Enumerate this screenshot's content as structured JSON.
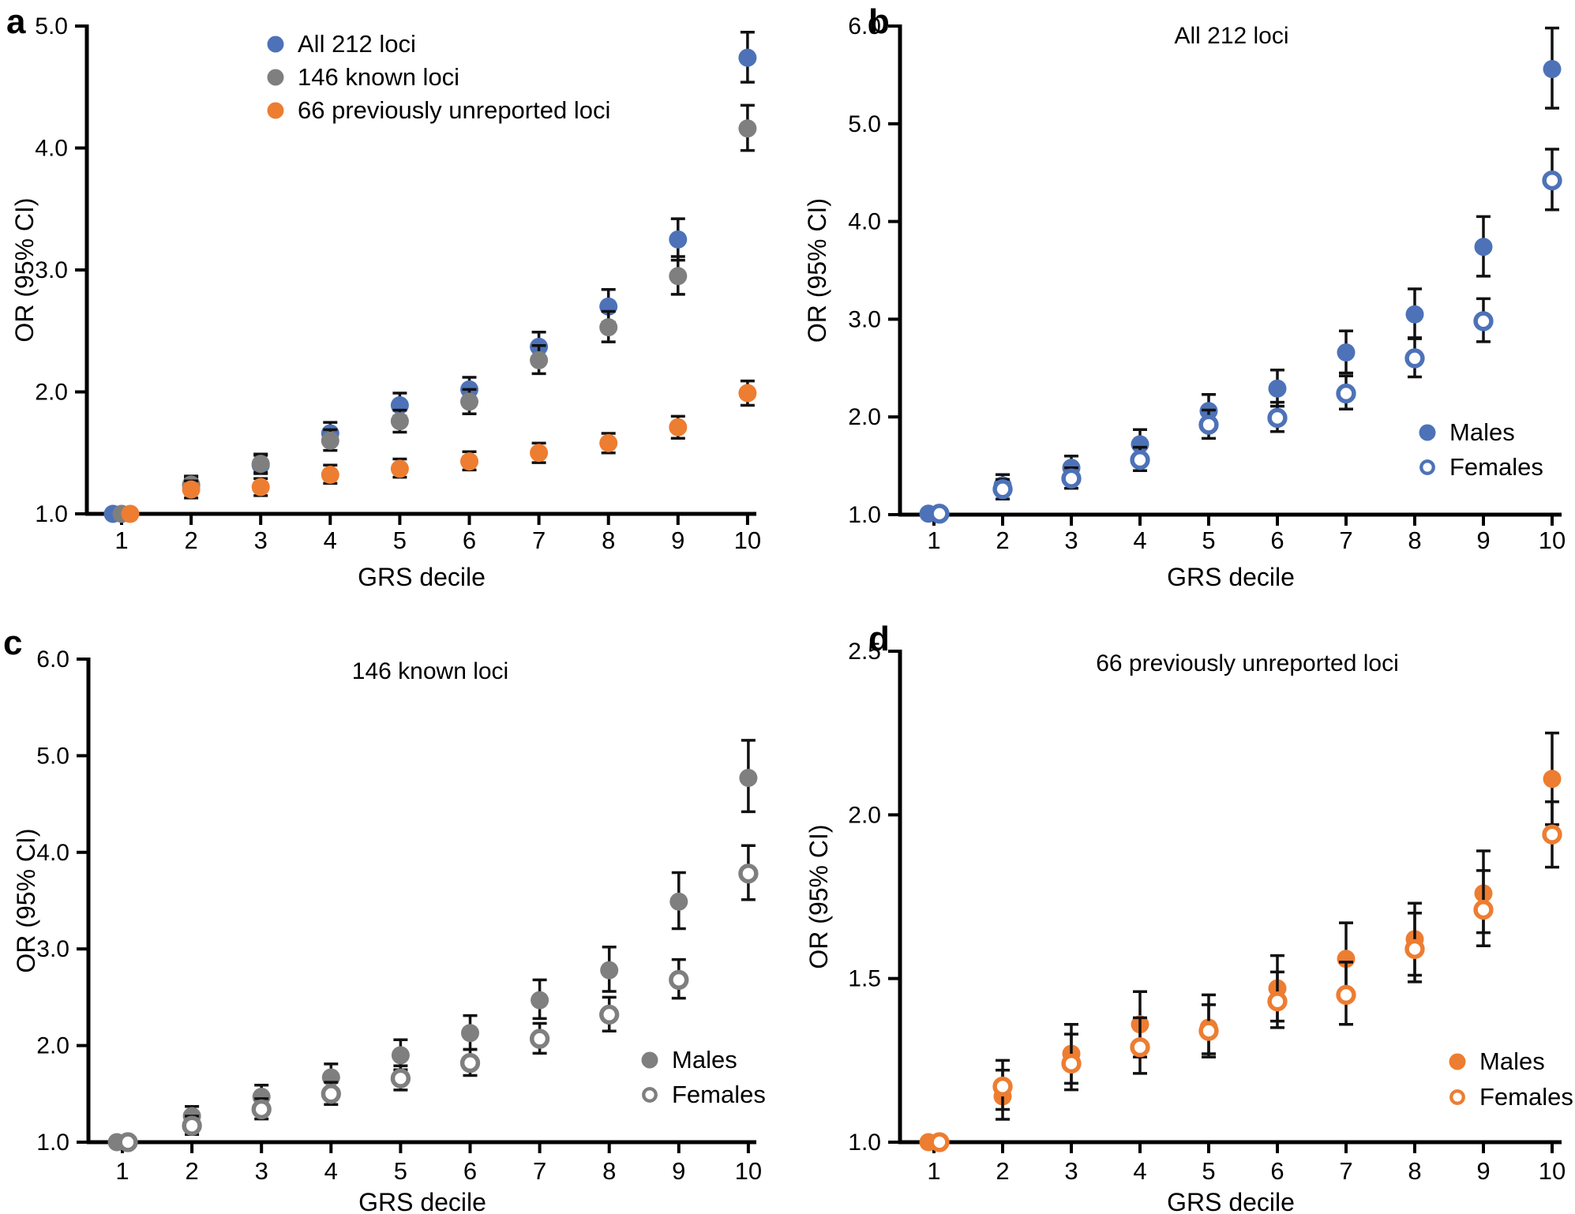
{
  "figure": {
    "panel_letters": [
      "a",
      "b",
      "c",
      "d"
    ],
    "xlabel": "GRS decile",
    "ylabel": "OR (95% CI)"
  },
  "colors": {
    "blue": "#4d72b8",
    "gray": "#7f7f7f",
    "orange": "#ed7d31",
    "error_bar": "#111111",
    "text": "#000000"
  },
  "chart_data": [
    {
      "type": "scatter",
      "panel_letter": "a",
      "title": "",
      "xlabel": "GRS decile",
      "ylabel": "OR (95% CI)",
      "categories": [
        1,
        2,
        3,
        4,
        5,
        6,
        7,
        8,
        9,
        10
      ],
      "ylim": [
        1.0,
        5.0
      ],
      "yticks": [
        1.0,
        2.0,
        3.0,
        4.0,
        5.0
      ],
      "legend_position": "top-inside",
      "series": [
        {
          "name": "All 212 loci",
          "color": "#4d72b8",
          "marker": "filled",
          "values": [
            1.0,
            1.23,
            1.4,
            1.66,
            1.89,
            2.02,
            2.37,
            2.7,
            3.25,
            4.74
          ],
          "ci_lo": [
            1.0,
            1.16,
            1.33,
            1.57,
            1.8,
            1.92,
            2.25,
            2.57,
            3.08,
            4.54
          ],
          "ci_hi": [
            1.0,
            1.3,
            1.48,
            1.75,
            1.99,
            2.12,
            2.49,
            2.84,
            3.42,
            4.95
          ]
        },
        {
          "name": "146 known loci",
          "color": "#7f7f7f",
          "marker": "filled",
          "values": [
            1.0,
            1.24,
            1.41,
            1.6,
            1.76,
            1.92,
            2.26,
            2.53,
            2.95,
            4.16
          ],
          "ci_lo": [
            1.0,
            1.17,
            1.34,
            1.52,
            1.67,
            1.82,
            2.15,
            2.41,
            2.8,
            3.98
          ],
          "ci_hi": [
            1.0,
            1.31,
            1.49,
            1.69,
            1.85,
            2.02,
            2.38,
            2.66,
            3.11,
            4.35
          ]
        },
        {
          "name": "66 previously unreported loci",
          "color": "#ed7d31",
          "marker": "filled",
          "values": [
            1.0,
            1.2,
            1.22,
            1.32,
            1.37,
            1.43,
            1.5,
            1.58,
            1.71,
            1.99
          ],
          "ci_lo": [
            1.0,
            1.13,
            1.15,
            1.25,
            1.3,
            1.36,
            1.42,
            1.5,
            1.62,
            1.89
          ],
          "ci_hi": [
            1.0,
            1.27,
            1.29,
            1.4,
            1.45,
            1.51,
            1.58,
            1.66,
            1.8,
            2.09
          ]
        }
      ]
    },
    {
      "type": "scatter",
      "panel_letter": "b",
      "title": "All 212 loci",
      "xlabel": "GRS decile",
      "ylabel": "OR (95% CI)",
      "categories": [
        1,
        2,
        3,
        4,
        5,
        6,
        7,
        8,
        9,
        10
      ],
      "ylim": [
        1.0,
        6.0
      ],
      "yticks": [
        1.0,
        2.0,
        3.0,
        4.0,
        5.0,
        6.0
      ],
      "legend_position": "bottom-right-inside",
      "series": [
        {
          "name": "Males",
          "color": "#4d72b8",
          "marker": "filled",
          "values": [
            1.01,
            1.3,
            1.48,
            1.72,
            2.06,
            2.29,
            2.66,
            3.05,
            3.74,
            5.56
          ],
          "ci_lo": [
            1.01,
            1.2,
            1.36,
            1.59,
            1.9,
            2.11,
            2.45,
            2.81,
            3.44,
            5.16
          ],
          "ci_hi": [
            1.01,
            1.41,
            1.6,
            1.87,
            2.23,
            2.48,
            2.88,
            3.31,
            4.05,
            5.98
          ]
        },
        {
          "name": "Females",
          "color": "#4d72b8",
          "marker": "open",
          "values": [
            1.01,
            1.26,
            1.37,
            1.56,
            1.92,
            1.99,
            2.24,
            2.6,
            2.98,
            4.42
          ],
          "ci_lo": [
            1.01,
            1.16,
            1.27,
            1.45,
            1.78,
            1.85,
            2.08,
            2.41,
            2.77,
            4.12
          ],
          "ci_hi": [
            1.01,
            1.36,
            1.48,
            1.69,
            2.07,
            2.15,
            2.42,
            2.8,
            3.21,
            4.74
          ]
        }
      ]
    },
    {
      "type": "scatter",
      "panel_letter": "c",
      "title": "146 known loci",
      "xlabel": "GRS decile",
      "ylabel": "OR (95% CI)",
      "categories": [
        1,
        2,
        3,
        4,
        5,
        6,
        7,
        8,
        9,
        10
      ],
      "ylim": [
        1.0,
        6.0
      ],
      "yticks": [
        1.0,
        2.0,
        3.0,
        4.0,
        5.0,
        6.0
      ],
      "legend_position": "bottom-right-inside",
      "series": [
        {
          "name": "Males",
          "color": "#7f7f7f",
          "marker": "filled",
          "values": [
            1.0,
            1.27,
            1.47,
            1.67,
            1.9,
            2.13,
            2.47,
            2.78,
            3.49,
            4.77
          ],
          "ci_lo": [
            1.0,
            1.17,
            1.36,
            1.54,
            1.75,
            1.96,
            2.28,
            2.56,
            3.21,
            4.42
          ],
          "ci_hi": [
            1.0,
            1.37,
            1.59,
            1.81,
            2.06,
            2.31,
            2.68,
            3.02,
            3.79,
            5.16
          ]
        },
        {
          "name": "Females",
          "color": "#7f7f7f",
          "marker": "open",
          "values": [
            1.0,
            1.17,
            1.34,
            1.5,
            1.66,
            1.82,
            2.07,
            2.32,
            2.68,
            3.78
          ],
          "ci_lo": [
            1.0,
            1.08,
            1.24,
            1.39,
            1.54,
            1.69,
            1.92,
            2.15,
            2.49,
            3.51
          ],
          "ci_hi": [
            1.0,
            1.27,
            1.45,
            1.62,
            1.79,
            1.96,
            2.23,
            2.5,
            2.89,
            4.07
          ]
        }
      ]
    },
    {
      "type": "scatter",
      "panel_letter": "d",
      "title": "66 previously unreported loci",
      "xlabel": "GRS decile",
      "ylabel": "OR (95% CI)",
      "categories": [
        1,
        2,
        3,
        4,
        5,
        6,
        7,
        8,
        9,
        10
      ],
      "ylim": [
        1.0,
        2.5
      ],
      "yticks": [
        1.0,
        1.5,
        2.0,
        2.5
      ],
      "legend_position": "bottom-right-inside",
      "series": [
        {
          "name": "Males",
          "color": "#ed7d31",
          "marker": "filled",
          "values": [
            1.0,
            1.14,
            1.27,
            1.36,
            1.35,
            1.47,
            1.56,
            1.62,
            1.76,
            2.11
          ],
          "ci_lo": [
            1.0,
            1.07,
            1.18,
            1.26,
            1.26,
            1.37,
            1.45,
            1.51,
            1.64,
            1.97
          ],
          "ci_hi": [
            1.0,
            1.22,
            1.36,
            1.46,
            1.45,
            1.57,
            1.67,
            1.73,
            1.89,
            2.25
          ]
        },
        {
          "name": "Females",
          "color": "#ed7d31",
          "marker": "open",
          "values": [
            1.0,
            1.17,
            1.24,
            1.29,
            1.34,
            1.43,
            1.45,
            1.59,
            1.71,
            1.94
          ],
          "ci_lo": [
            1.0,
            1.1,
            1.16,
            1.21,
            1.27,
            1.35,
            1.36,
            1.49,
            1.6,
            1.84
          ],
          "ci_hi": [
            1.0,
            1.25,
            1.33,
            1.38,
            1.42,
            1.52,
            1.55,
            1.7,
            1.83,
            2.04
          ]
        }
      ]
    }
  ]
}
